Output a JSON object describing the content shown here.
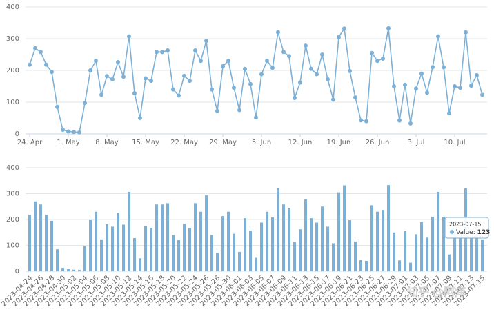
{
  "chart_data": [
    {
      "type": "line",
      "color": "#7cb0d6",
      "categories": [
        "24. Apr",
        null,
        null,
        null,
        null,
        null,
        null,
        "1. May",
        null,
        null,
        null,
        null,
        null,
        null,
        "8. May",
        null,
        null,
        null,
        null,
        null,
        null,
        "15. May",
        null,
        null,
        null,
        null,
        null,
        null,
        "22. May",
        null,
        null,
        null,
        null,
        null,
        null,
        "29. May",
        null,
        null,
        null,
        null,
        null,
        null,
        "5. Jun",
        null,
        null,
        null,
        null,
        null,
        null,
        "12. Jun",
        null,
        null,
        null,
        null,
        null,
        null,
        "19. Jun",
        null,
        null,
        null,
        null,
        null,
        null,
        "26. Jun",
        null,
        null,
        null,
        null,
        null,
        null,
        "3. Jul",
        null,
        null,
        null,
        null,
        null,
        null,
        "10. Jul",
        null,
        null,
        null,
        null,
        null
      ],
      "values": [
        218,
        270,
        258,
        218,
        195,
        85,
        13,
        8,
        6,
        5,
        97,
        200,
        230,
        123,
        182,
        172,
        226,
        180,
        307,
        128,
        50,
        175,
        167,
        258,
        258,
        263,
        140,
        121,
        183,
        167,
        263,
        230,
        293,
        140,
        72,
        213,
        230,
        145,
        75,
        205,
        157,
        52,
        188,
        230,
        208,
        320,
        258,
        245,
        113,
        162,
        278,
        205,
        188,
        250,
        172,
        108,
        305,
        332,
        198,
        115,
        43,
        40,
        255,
        230,
        237,
        333,
        150,
        42,
        155,
        33,
        143,
        190,
        130,
        210,
        307,
        210,
        65,
        150,
        145,
        320,
        152,
        185,
        123
      ],
      "ylim": [
        0,
        400
      ],
      "yticks": [
        0,
        100,
        200,
        300,
        400
      ],
      "grid": true
    },
    {
      "type": "bar",
      "categories": [
        "2023-04-24",
        null,
        "2023-04-26",
        null,
        "2023-04-28",
        null,
        "2023-04-30",
        null,
        "2023-05-02",
        null,
        "2023-05-04",
        null,
        "2023-05-06",
        null,
        "2023-05-08",
        null,
        "2023-05-10",
        null,
        "2023-05-12",
        null,
        "2023-05-14",
        null,
        "2023-05-16",
        null,
        "2023-05-18",
        null,
        "2023-05-20",
        null,
        "2023-05-22",
        null,
        "2023-05-24",
        null,
        "2023-05-26",
        null,
        "2023-05-28",
        null,
        "2023-05-30",
        null,
        "2023-06-01",
        null,
        "2023-06-03",
        null,
        "2023-06-05",
        null,
        "2023-06-07",
        null,
        "2023-06-09",
        null,
        "2023-06-11",
        null,
        "2023-06-13",
        null,
        "2023-06-15",
        null,
        "2023-06-17",
        null,
        "2023-06-19",
        null,
        "2023-06-21",
        null,
        "2023-06-23",
        null,
        "2023-06-25",
        null,
        "2023-06-27",
        null,
        "2023-06-29",
        null,
        "2023-07-01",
        null,
        "2023-07-03",
        null,
        "2023-07-05",
        null,
        "2023-07-07",
        null,
        "2023-07-09",
        null,
        "2023-07-11",
        null,
        "2023-07-13",
        null,
        "2023-07-15"
      ],
      "series": [
        {
          "name": "Value",
          "color": "#7cb0d6",
          "values": [
            218,
            270,
            258,
            218,
            195,
            85,
            13,
            8,
            6,
            5,
            97,
            200,
            230,
            123,
            182,
            172,
            226,
            180,
            307,
            128,
            50,
            175,
            167,
            258,
            258,
            263,
            140,
            121,
            183,
            167,
            263,
            230,
            293,
            140,
            72,
            213,
            230,
            145,
            75,
            205,
            157,
            52,
            188,
            230,
            208,
            320,
            258,
            245,
            113,
            162,
            278,
            205,
            188,
            250,
            172,
            108,
            305,
            332,
            198,
            115,
            43,
            40,
            255,
            230,
            237,
            333,
            150,
            42,
            155,
            33,
            143,
            190,
            130,
            210,
            307,
            210,
            65,
            150,
            145,
            320,
            152,
            185,
            123
          ]
        }
      ],
      "ylim": [
        0,
        400
      ],
      "yticks": [
        0,
        100,
        200,
        300,
        400
      ],
      "grid": true,
      "tooltip_index": 82,
      "watermark": "知乎 @阿痒"
    }
  ]
}
